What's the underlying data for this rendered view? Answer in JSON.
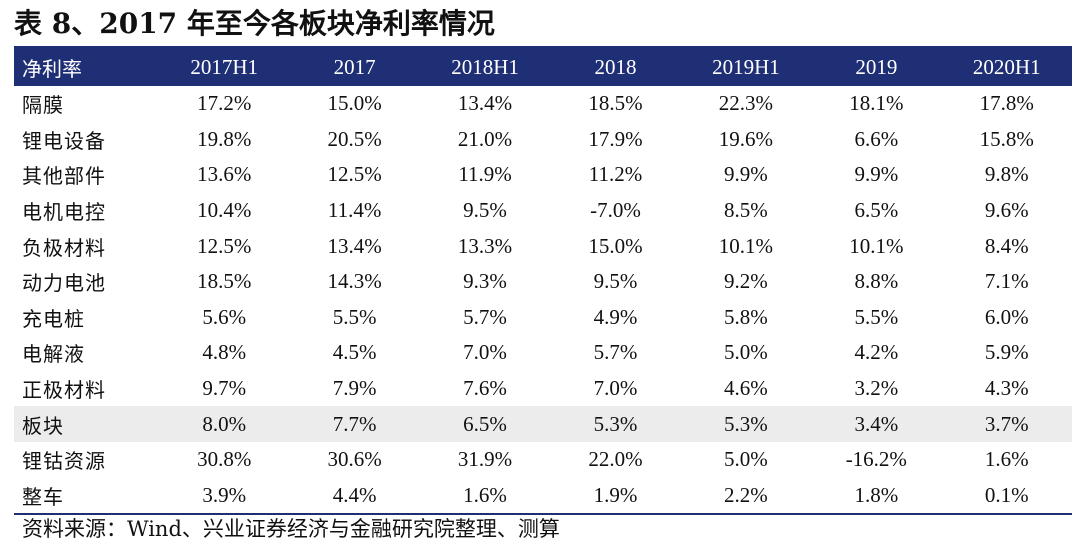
{
  "title": "表 8、2017 年至今各板块净利率情况",
  "table": {
    "header": [
      "净利率",
      "2017H1",
      "2017",
      "2018H1",
      "2018",
      "2019H1",
      "2019",
      "2020H1"
    ],
    "highlight_row": "板块",
    "rows": [
      {
        "label": "隔膜",
        "values": [
          "17.2%",
          "15.0%",
          "13.4%",
          "18.5%",
          "22.3%",
          "18.1%",
          "17.8%"
        ]
      },
      {
        "label": "锂电设备",
        "values": [
          "19.8%",
          "20.5%",
          "21.0%",
          "17.9%",
          "19.6%",
          "6.6%",
          "15.8%"
        ]
      },
      {
        "label": "其他部件",
        "values": [
          "13.6%",
          "12.5%",
          "11.9%",
          "11.2%",
          "9.9%",
          "9.9%",
          "9.8%"
        ]
      },
      {
        "label": "电机电控",
        "values": [
          "10.4%",
          "11.4%",
          "9.5%",
          "-7.0%",
          "8.5%",
          "6.5%",
          "9.6%"
        ]
      },
      {
        "label": "负极材料",
        "values": [
          "12.5%",
          "13.4%",
          "13.3%",
          "15.0%",
          "10.1%",
          "10.1%",
          "8.4%"
        ]
      },
      {
        "label": "动力电池",
        "values": [
          "18.5%",
          "14.3%",
          "9.3%",
          "9.5%",
          "9.2%",
          "8.8%",
          "7.1%"
        ]
      },
      {
        "label": "充电桩",
        "values": [
          "5.6%",
          "5.5%",
          "5.7%",
          "4.9%",
          "5.8%",
          "5.5%",
          "6.0%"
        ]
      },
      {
        "label": "电解液",
        "values": [
          "4.8%",
          "4.5%",
          "7.0%",
          "5.7%",
          "5.0%",
          "4.2%",
          "5.9%"
        ]
      },
      {
        "label": "正极材料",
        "values": [
          "9.7%",
          "7.9%",
          "7.6%",
          "7.0%",
          "4.6%",
          "3.2%",
          "4.3%"
        ]
      },
      {
        "label": "板块",
        "values": [
          "8.0%",
          "7.7%",
          "6.5%",
          "5.3%",
          "5.3%",
          "3.4%",
          "3.7%"
        ]
      },
      {
        "label": "锂钴资源",
        "values": [
          "30.8%",
          "30.6%",
          "31.9%",
          "22.0%",
          "5.0%",
          "-16.2%",
          "1.6%"
        ]
      },
      {
        "label": "整车",
        "values": [
          "3.9%",
          "4.4%",
          "1.6%",
          "1.9%",
          "2.2%",
          "1.8%",
          "0.1%"
        ]
      }
    ]
  },
  "source": "资料来源：Wind、兴业证券经济与金融研究院整理、测算",
  "colors": {
    "header_bg": "#1f2f75",
    "highlight_bg": "#ececec"
  }
}
